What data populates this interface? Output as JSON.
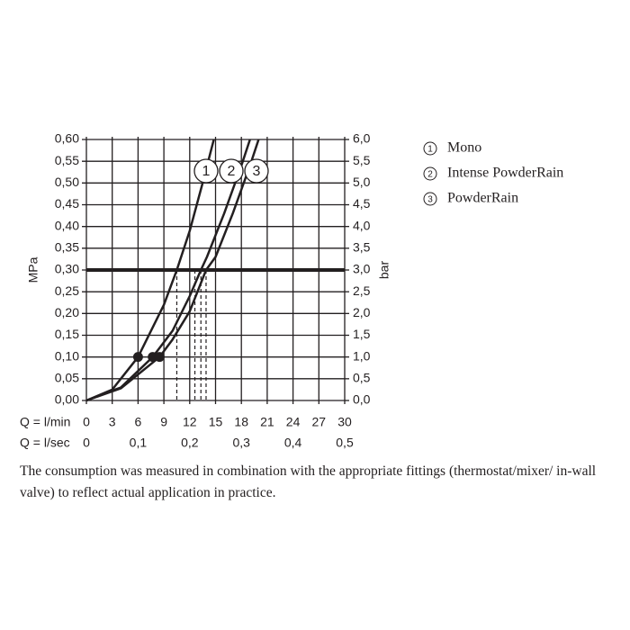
{
  "chart_data": {
    "type": "line",
    "y_label": "MPa",
    "y2_label": "bar",
    "x_label": "Q = l/min",
    "x2_label": "Q = l/sec",
    "note": "The consumption was measured in combination with the appropriate fittings (thermostat/mixer/ in-wall valve) to reflect actual application in practice.",
    "xlim": [
      0,
      30
    ],
    "xticks": [
      0,
      3,
      6,
      9,
      12,
      15,
      18,
      21,
      24,
      27,
      30
    ],
    "x2lim": [
      0,
      0.5
    ],
    "x2ticks": [
      0,
      {
        "value": 0.1,
        "label": "0,1"
      },
      {
        "value": 0.2,
        "label": "0,2"
      },
      {
        "value": 0.3,
        "label": "0,3"
      },
      {
        "value": 0.4,
        "label": "0,4"
      },
      {
        "value": 0.5,
        "label": "0,5"
      }
    ],
    "ylim": [
      0,
      0.6
    ],
    "yticks": [
      {
        "value": 0,
        "label": "0,00"
      },
      {
        "value": 0.05,
        "label": "0,05"
      },
      {
        "value": 0.1,
        "label": "0,10"
      },
      {
        "value": 0.15,
        "label": "0,15"
      },
      {
        "value": 0.2,
        "label": "0,20"
      },
      {
        "value": 0.25,
        "label": "0,25"
      },
      {
        "value": 0.3,
        "label": "0,30"
      },
      {
        "value": 0.35,
        "label": "0,35"
      },
      {
        "value": 0.4,
        "label": "0,40"
      },
      {
        "value": 0.45,
        "label": "0,45"
      },
      {
        "value": 0.5,
        "label": "0,50"
      },
      {
        "value": 0.55,
        "label": "0,55"
      },
      {
        "value": 0.6,
        "label": "0,60"
      }
    ],
    "y2lim": [
      0,
      6
    ],
    "y2ticks": [
      {
        "value": 0,
        "label": "0,0"
      },
      {
        "value": 0.5,
        "label": "0,5"
      },
      {
        "value": 1,
        "label": "1,0"
      },
      {
        "value": 1.5,
        "label": "1,5"
      },
      {
        "value": 2,
        "label": "2,0"
      },
      {
        "value": 2.5,
        "label": "2,5"
      },
      {
        "value": 3,
        "label": "3,0"
      },
      {
        "value": 3.5,
        "label": "3,5"
      },
      {
        "value": 4,
        "label": "4,0"
      },
      {
        "value": 4.5,
        "label": "4,5"
      },
      {
        "value": 5,
        "label": "5,0"
      },
      {
        "value": 5.5,
        "label": "5,5"
      },
      {
        "value": 6,
        "label": "6,0"
      }
    ],
    "grid": true,
    "reference_y": 0.3,
    "reference_x": [
      10.5,
      12.6,
      13.3,
      13.9
    ],
    "series": [
      {
        "name": "Mono",
        "label": "1",
        "color": "#231f20",
        "x": [
          0,
          3,
          6,
          9,
          10.5,
          12,
          13.5,
          14.8
        ],
        "values": [
          0,
          0.025,
          0.1,
          0.22,
          0.3,
          0.39,
          0.5,
          0.6
        ],
        "marker": {
          "x": 6,
          "y": 0.1
        }
      },
      {
        "name": "Intense PowderRain",
        "label": "2",
        "color": "#231f20",
        "x": [
          0,
          4,
          7.7,
          10,
          12,
          13.3,
          14,
          16,
          18,
          19
        ],
        "values": [
          0,
          0.03,
          0.1,
          0.16,
          0.24,
          0.3,
          0.33,
          0.43,
          0.54,
          0.6
        ],
        "marker": {
          "x": 7.7,
          "y": 0.1
        }
      },
      {
        "name": "PowderRain",
        "label": "3",
        "color": "#231f20",
        "x": [
          0,
          4,
          8.5,
          10,
          12,
          13.9,
          15,
          17,
          19,
          20
        ],
        "values": [
          0,
          0.028,
          0.1,
          0.14,
          0.205,
          0.3,
          0.33,
          0.43,
          0.54,
          0.6
        ],
        "marker": {
          "x": 8.5,
          "y": 0.1
        }
      }
    ]
  }
}
